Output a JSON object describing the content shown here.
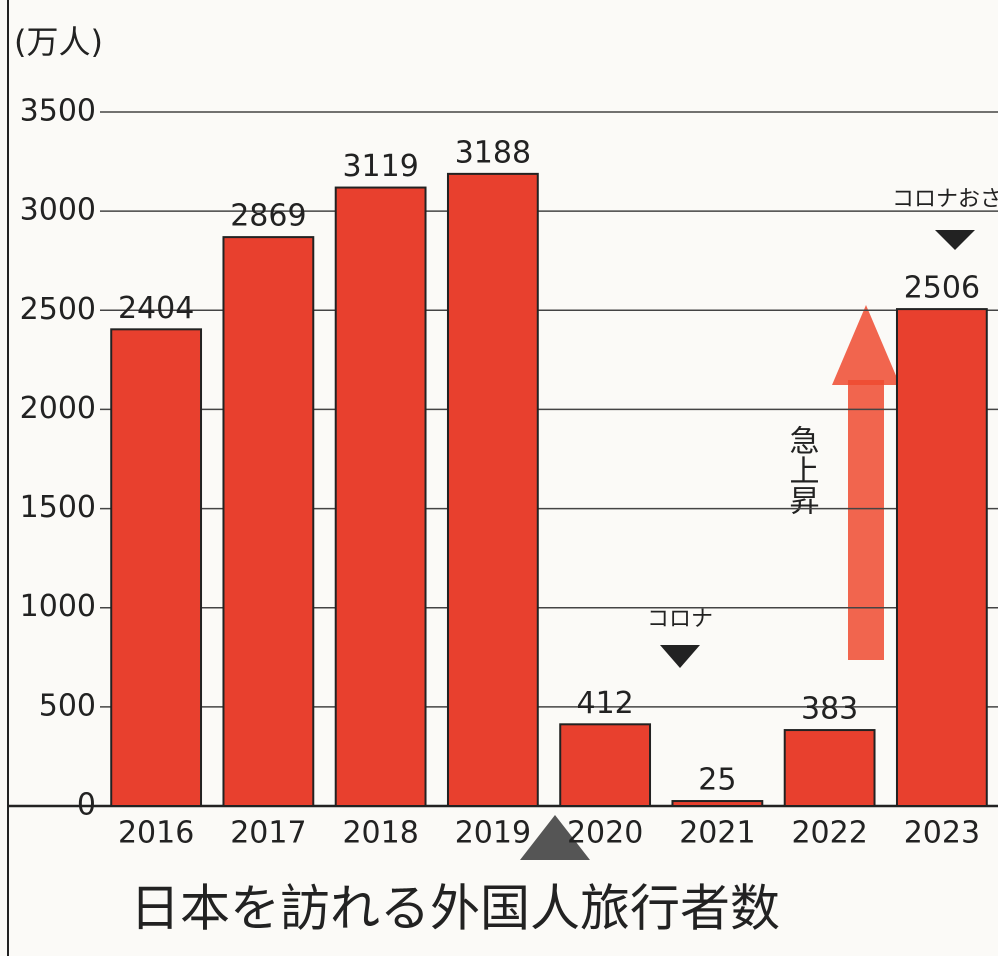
{
  "chart_data": {
    "type": "bar",
    "title": "日本を訪れる外国人旅行者数",
    "unit_label": "(万人)",
    "categories": [
      "2016",
      "2017",
      "2018",
      "2019",
      "2020",
      "2021",
      "2022",
      "2023"
    ],
    "values": [
      2404,
      2869,
      3119,
      3188,
      412,
      25,
      383,
      2506
    ],
    "color": "#e8402e",
    "ylim": [
      0,
      3500
    ],
    "yticks": [
      0,
      500,
      1000,
      1500,
      2000,
      2500,
      3000,
      3500
    ],
    "grid": true,
    "annotations": [
      "コロナ",
      "コロナおさまった",
      "急上昇"
    ]
  }
}
